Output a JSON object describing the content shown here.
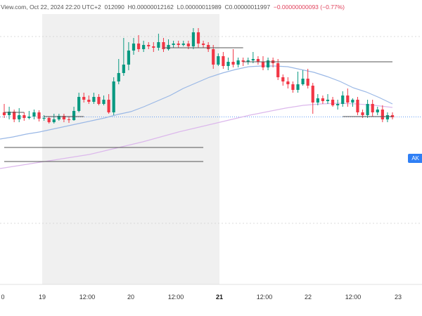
{
  "header": {
    "source": "View.com, Oct 22, 2024 22:20 UTC+2",
    "open": "012090",
    "high": "H0.00000012162",
    "low": "L0.00000011989",
    "close": "C0.00000011997",
    "change": "−0.00000000093 (−0.77%)"
  },
  "price_tag": "AK",
  "colors": {
    "up": "#089981",
    "down": "#f23645",
    "ma_fast": "#9ab8e6",
    "ma_slow": "#dcb8ec",
    "session": "#f0f0f0",
    "level": "#555555"
  },
  "chart_data": {
    "type": "candlestick",
    "x_ticks": [
      "0",
      "19",
      "12:00",
      "20",
      "12:00",
      "21",
      "12:00",
      "22",
      "12:00",
      "23"
    ],
    "x_ticks_bold": [
      "21"
    ],
    "candles": [
      [
        380,
        376,
        392,
        372
      ],
      [
        376,
        381,
        388,
        370
      ],
      [
        381,
        370,
        384,
        366
      ],
      [
        370,
        376,
        386,
        366
      ],
      [
        376,
        372,
        380,
        368
      ],
      [
        372,
        374,
        382,
        370
      ],
      [
        374,
        380,
        384,
        370
      ],
      [
        380,
        371,
        383,
        367
      ],
      [
        371,
        372,
        376,
        368
      ],
      [
        372,
        366,
        374,
        364
      ],
      [
        366,
        370,
        378,
        364
      ],
      [
        370,
        375,
        378,
        368
      ],
      [
        375,
        370,
        378,
        366
      ],
      [
        370,
        369,
        374,
        365
      ],
      [
        369,
        382,
        388,
        368
      ],
      [
        382,
        402,
        408,
        380
      ],
      [
        402,
        398,
        408,
        394
      ],
      [
        398,
        395,
        404,
        392
      ],
      [
        395,
        402,
        408,
        392
      ],
      [
        402,
        392,
        406,
        390
      ],
      [
        392,
        398,
        404,
        390
      ],
      [
        398,
        380,
        406,
        378
      ],
      [
        380,
        424,
        430,
        376
      ],
      [
        424,
        436,
        456,
        420
      ],
      [
        436,
        448,
        486,
        432
      ],
      [
        448,
        468,
        480,
        440
      ],
      [
        468,
        478,
        486,
        462
      ],
      [
        478,
        470,
        490,
        466
      ],
      [
        470,
        476,
        482,
        466
      ],
      [
        476,
        474,
        480,
        470
      ],
      [
        474,
        472,
        480,
        466
      ],
      [
        472,
        480,
        492,
        468
      ],
      [
        480,
        470,
        486,
        466
      ],
      [
        470,
        476,
        484,
        468
      ],
      [
        476,
        478,
        482,
        472
      ],
      [
        478,
        476,
        482,
        472
      ],
      [
        476,
        478,
        482,
        474
      ],
      [
        478,
        474,
        482,
        470
      ],
      [
        474,
        494,
        500,
        470
      ],
      [
        494,
        478,
        500,
        472
      ],
      [
        478,
        476,
        482,
        472
      ],
      [
        476,
        470,
        480,
        466
      ],
      [
        470,
        448,
        476,
        442
      ],
      [
        448,
        460,
        464,
        446
      ],
      [
        460,
        446,
        466,
        442
      ],
      [
        446,
        452,
        458,
        440
      ],
      [
        452,
        448,
        470,
        444
      ],
      [
        448,
        454,
        458,
        444
      ],
      [
        454,
        452,
        458,
        446
      ],
      [
        452,
        454,
        458,
        448
      ],
      [
        454,
        456,
        466,
        450
      ],
      [
        456,
        452,
        460,
        448
      ],
      [
        452,
        444,
        460,
        440
      ],
      [
        444,
        454,
        458,
        440
      ],
      [
        454,
        450,
        458,
        444
      ],
      [
        450,
        430,
        456,
        426
      ],
      [
        430,
        424,
        434,
        418
      ],
      [
        424,
        420,
        430,
        414
      ],
      [
        420,
        412,
        424,
        408
      ],
      [
        412,
        420,
        438,
        408
      ],
      [
        420,
        428,
        440,
        418
      ],
      [
        428,
        418,
        442,
        414
      ],
      [
        418,
        394,
        422,
        378
      ],
      [
        394,
        400,
        406,
        390
      ],
      [
        400,
        396,
        404,
        392
      ],
      [
        396,
        398,
        406,
        392
      ],
      [
        398,
        390,
        402,
        388
      ],
      [
        390,
        392,
        398,
        384
      ],
      [
        392,
        404,
        410,
        388
      ],
      [
        404,
        394,
        414,
        388
      ],
      [
        394,
        398,
        400,
        388
      ],
      [
        398,
        380,
        402,
        376
      ],
      [
        380,
        376,
        384,
        372
      ],
      [
        376,
        392,
        398,
        372
      ],
      [
        392,
        380,
        398,
        374
      ],
      [
        380,
        384,
        388,
        376
      ],
      [
        384,
        370,
        390,
        366
      ],
      [
        370,
        376,
        380,
        366
      ],
      [
        376,
        373,
        380,
        370
      ]
    ],
    "ma_fast": [
      342,
      345,
      349,
      352,
      356,
      360,
      364,
      368,
      372,
      377,
      381,
      388,
      396,
      404,
      414,
      422,
      430,
      436,
      441,
      445,
      446,
      446,
      445,
      441,
      437,
      431,
      424,
      415,
      409,
      401,
      392
    ],
    "ma_slow": [
      300,
      304,
      308,
      312,
      316,
      320,
      326,
      332,
      338,
      345,
      352,
      358,
      364,
      370,
      376,
      381,
      386,
      390,
      392,
      393,
      392,
      390,
      387
    ],
    "levels": [
      {
        "from": 0,
        "to": 1,
        "price": 380
      },
      {
        "from": 2,
        "to": 4,
        "price": 374
      },
      {
        "from": 8,
        "to": 12,
        "price": 472
      },
      {
        "from": 12,
        "to": 21,
        "price": 452
      },
      {
        "from": 17,
        "to": 21,
        "price": 374
      },
      {
        "from": 0,
        "to": 10,
        "price": 310
      },
      {
        "from": 0,
        "to": 10,
        "price": 330
      }
    ],
    "current_price": 374
  }
}
